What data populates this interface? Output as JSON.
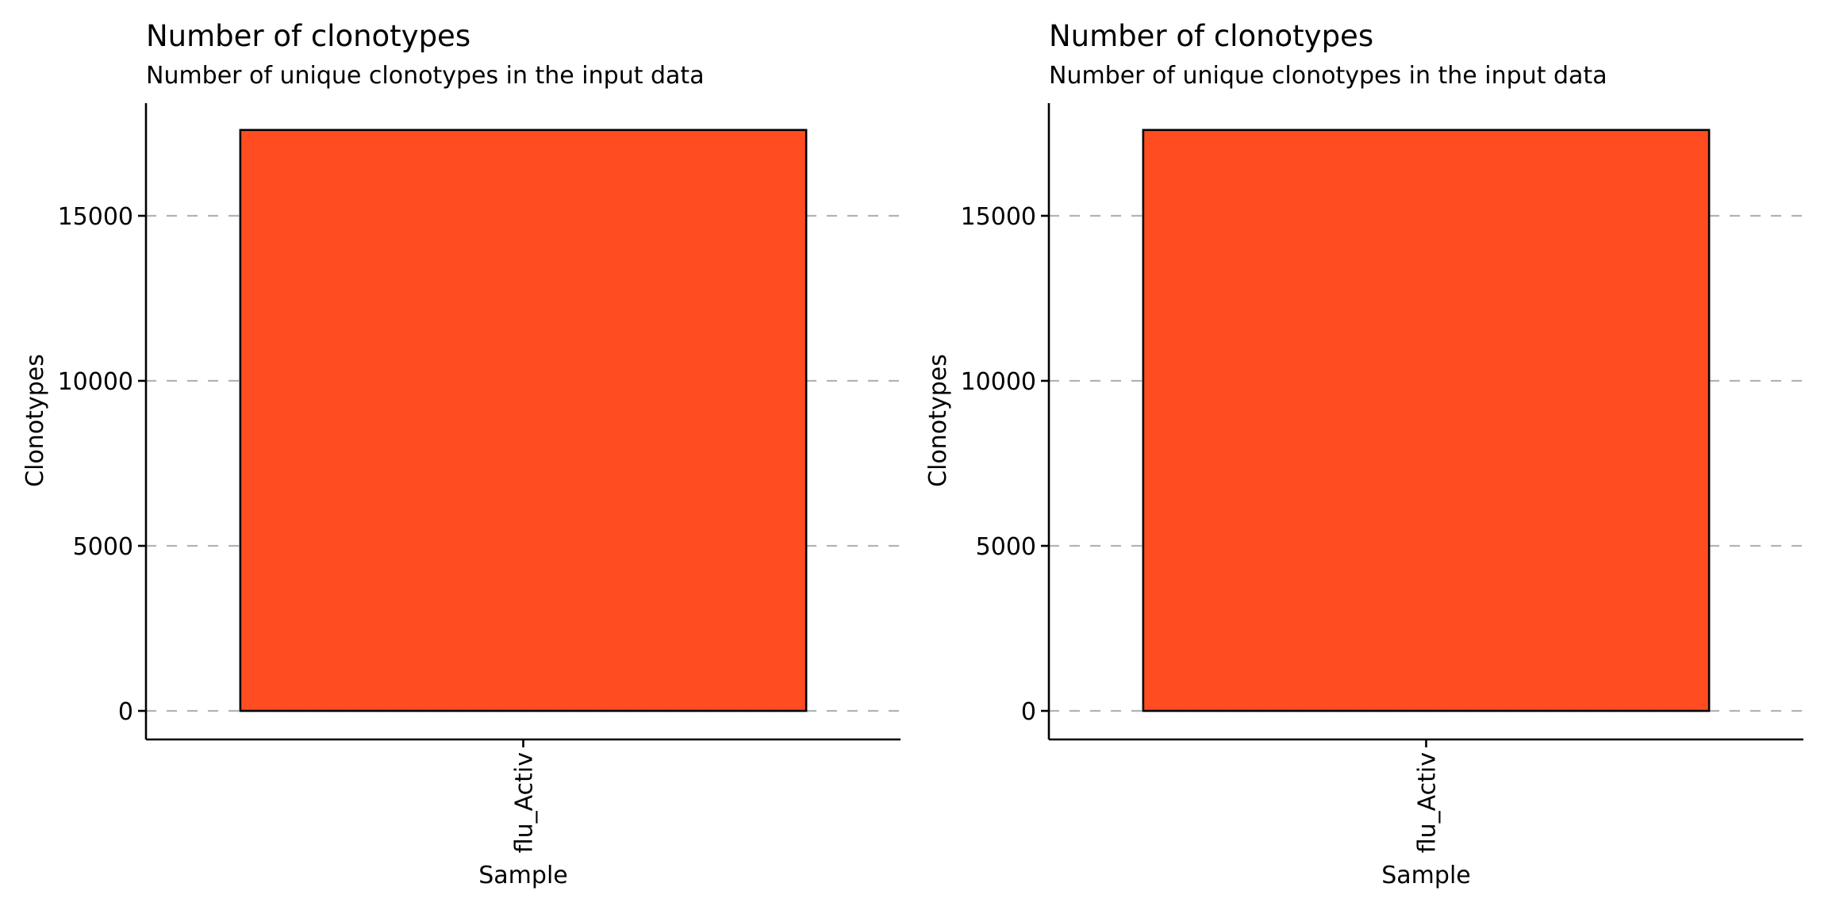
{
  "chart_data": [
    {
      "type": "bar",
      "title": "Number of clonotypes",
      "subtitle": "Number of unique clonotypes in the input data",
      "xlabel": "Sample",
      "ylabel": "Clonotypes",
      "categories": [
        "flu_Activ"
      ],
      "values": [
        17600
      ],
      "ylim": [
        0,
        18500
      ],
      "yticks": [
        0,
        5000,
        10000,
        15000
      ],
      "ytick_labels": [
        "0",
        "5000",
        "10000",
        "15000"
      ],
      "bar_color": "#ff4d21",
      "grid": "major-y dashed",
      "legend": "none"
    },
    {
      "type": "bar",
      "title": "Number of clonotypes",
      "subtitle": "Number of unique clonotypes in the input data",
      "xlabel": "Sample",
      "ylabel": "Clonotypes",
      "categories": [
        "flu_Activ"
      ],
      "values": [
        17600
      ],
      "ylim": [
        0,
        18500
      ],
      "yticks": [
        0,
        5000,
        10000,
        15000
      ],
      "ytick_labels": [
        "0",
        "5000",
        "10000",
        "15000"
      ],
      "bar_color": "#ff4d21",
      "grid": "major-y dashed",
      "legend": "none"
    }
  ]
}
